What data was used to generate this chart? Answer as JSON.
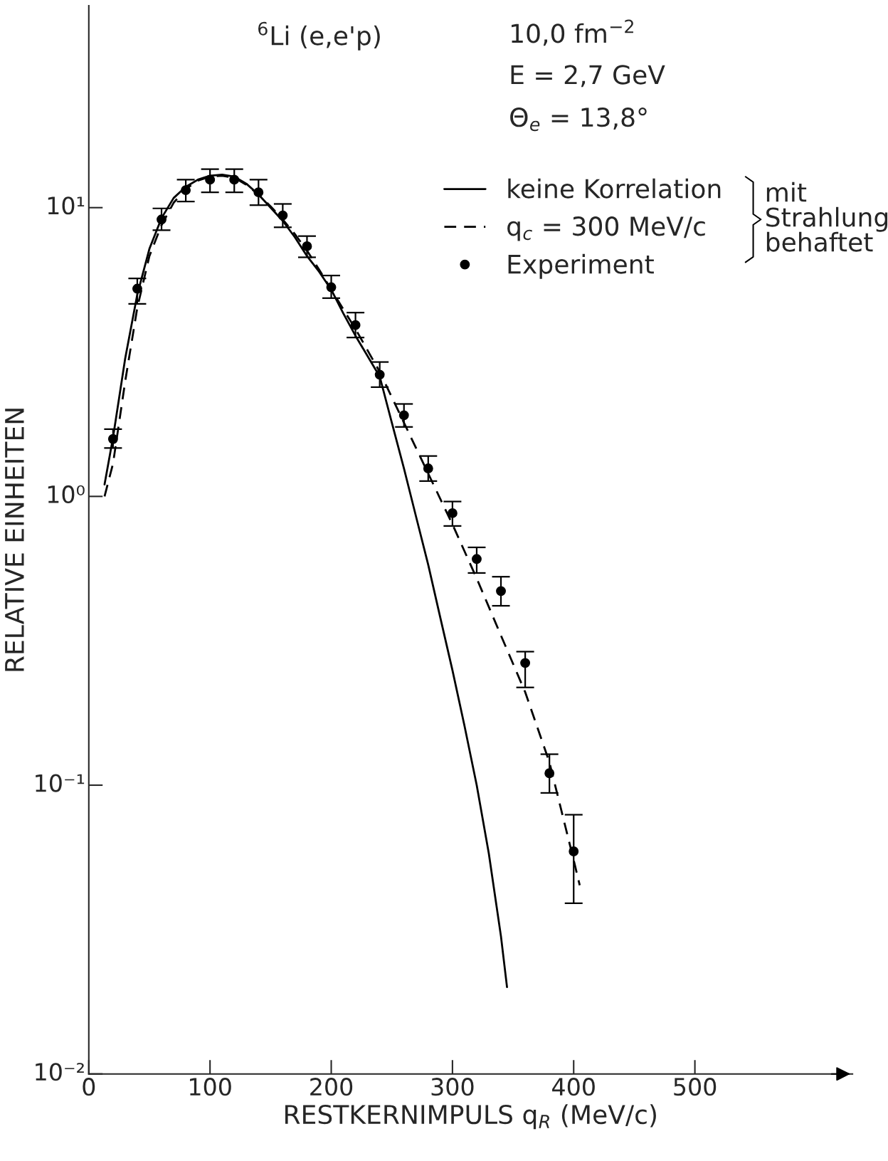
{
  "chart_data": {
    "type": "line",
    "xlabel": "RESTKERNIMPULS q$_{R}$ (MeV/c)",
    "ylabel": "RELATIVE EINHEITEN",
    "annotations": [
      "$^{6}$Li (e,e'p)",
      "10,0 fm$^{−2}$",
      "E = 2,7 GeV",
      "Θ$_{e}$ = 13,8°",
      "mit Strahlung behaftet"
    ],
    "log": "y",
    "xlim": [
      0,
      630
    ],
    "ylim": [
      0.01,
      50
    ],
    "xticks": [
      0,
      100,
      200,
      300,
      400,
      500
    ],
    "yticks": [
      {
        "value": 0.01,
        "label": "10⁻²"
      },
      {
        "value": 0.1,
        "label": "10⁻¹"
      },
      {
        "value": 1,
        "label": "10⁰"
      },
      {
        "value": 10,
        "label": "10¹"
      }
    ],
    "grid": false,
    "legend": "top right",
    "series": [
      {
        "name": "keine Korrelation",
        "line_style": "solid",
        "marker": "none",
        "color": "#000000",
        "x": [
          13,
          20,
          30,
          40,
          50,
          60,
          70,
          80,
          90,
          100,
          110,
          120,
          130,
          140,
          150,
          160,
          170,
          180,
          190,
          200,
          210,
          220,
          240,
          250,
          260,
          270,
          280,
          290,
          300,
          310,
          320,
          330,
          340,
          345
        ],
        "values": [
          1.1,
          1.6,
          3.0,
          5.0,
          7.2,
          9.2,
          10.8,
          11.8,
          12.5,
          12.9,
          13.0,
          12.8,
          12.1,
          11.1,
          10.0,
          9.0,
          7.9,
          6.8,
          6.0,
          5.2,
          4.3,
          3.6,
          2.6,
          1.8,
          1.25,
          0.85,
          0.58,
          0.38,
          0.25,
          0.16,
          0.1,
          0.058,
          0.03,
          0.02
        ]
      },
      {
        "name": "q$_{c}$ = 300 MeV/c",
        "line_style": "dashed",
        "marker": "none",
        "color": "#000000",
        "x": [
          13,
          20,
          30,
          40,
          50,
          60,
          70,
          80,
          90,
          100,
          110,
          120,
          130,
          140,
          150,
          160,
          170,
          180,
          190,
          200,
          220,
          240,
          260,
          280,
          300,
          320,
          340,
          360,
          380,
          400,
          405
        ],
        "values": [
          1.0,
          1.3,
          2.5,
          4.5,
          6.8,
          8.7,
          10.4,
          11.6,
          12.4,
          12.8,
          12.9,
          12.7,
          12.0,
          11.1,
          10.1,
          9.1,
          8.1,
          7.1,
          6.1,
          5.2,
          3.8,
          2.7,
          1.8,
          1.2,
          0.8,
          0.52,
          0.33,
          0.21,
          0.12,
          0.055,
          0.045
        ]
      },
      {
        "name": "Experiment",
        "type": "scatter",
        "marker": "circle",
        "color": "#000000",
        "x": [
          20,
          40,
          60,
          80,
          100,
          120,
          140,
          160,
          180,
          200,
          220,
          240,
          260,
          280,
          300,
          320,
          340,
          360,
          380,
          400
        ],
        "values": [
          1.58,
          5.24,
          9.1,
          11.5,
          12.5,
          12.5,
          11.3,
          9.4,
          7.35,
          5.3,
          3.92,
          2.64,
          1.91,
          1.25,
          0.875,
          0.607,
          0.47,
          0.265,
          0.11,
          0.059
        ],
        "errors": [
          [
            1.47,
            1.71
          ],
          [
            4.64,
            5.69
          ],
          [
            8.35,
            9.94
          ],
          [
            10.5,
            12.5
          ],
          [
            11.3,
            13.6
          ],
          [
            11.3,
            13.6
          ],
          [
            10.2,
            12.5
          ],
          [
            8.55,
            10.3
          ],
          [
            6.73,
            7.97
          ],
          [
            4.86,
            5.82
          ],
          [
            3.55,
            4.33
          ],
          [
            2.39,
            2.92
          ],
          [
            1.74,
            2.09
          ],
          [
            1.13,
            1.38
          ],
          [
            0.79,
            0.96
          ],
          [
            0.543,
            0.666
          ],
          [
            0.418,
            0.527
          ],
          [
            0.218,
            0.29
          ],
          [
            0.094,
            0.128
          ],
          [
            0.039,
            0.079
          ]
        ]
      }
    ]
  }
}
